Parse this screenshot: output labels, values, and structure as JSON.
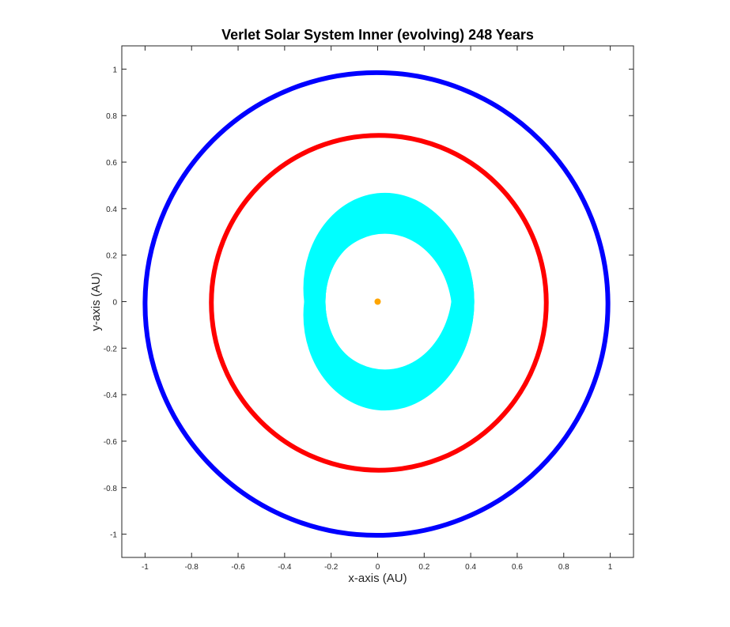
{
  "chart_data": {
    "type": "scatter",
    "title": "Verlet Solar System Inner (evolving) 248 Years",
    "xlabel": "x-axis (AU)",
    "ylabel": "y-axis (AU)",
    "xlim": [
      -1.1,
      1.1
    ],
    "ylim": [
      -1.1,
      1.1
    ],
    "xticks": [
      -1,
      -0.8,
      -0.6,
      -0.4,
      -0.2,
      0,
      0.2,
      0.4,
      0.6,
      0.8,
      1
    ],
    "yticks": [
      -1,
      -0.8,
      -0.6,
      -0.4,
      -0.2,
      0,
      0.2,
      0.4,
      0.6,
      0.8,
      1
    ],
    "xtick_labels": [
      "-1",
      "-0.8",
      "-0.6",
      "-0.4",
      "-0.2",
      "0",
      "0.2",
      "0.4",
      "0.6",
      "0.8",
      "1"
    ],
    "ytick_labels": [
      "-1",
      "-0.8",
      "-0.6",
      "-0.4",
      "-0.2",
      "0",
      "0.2",
      "0.4",
      "0.6",
      "0.8",
      "1"
    ],
    "grid": false,
    "series": [
      {
        "color": "#ff0000",
        "orbit": {
          "cx": 0.005,
          "cy": -0.005,
          "rx": 0.72,
          "ry": 0.72
        }
      },
      {
        "color": "#0000ff",
        "orbit": {
          "cx": -0.005,
          "cy": -0.01,
          "rx": 0.995,
          "ry": 0.995
        }
      },
      {
        "color": "#00ffff",
        "orbit_band": {
          "rx_outer": 0.41,
          "ry_outer": 0.46,
          "inner_offset": 0.15
        }
      },
      {
        "color": "#ffa500",
        "points": [
          [
            0.0,
            0.0
          ]
        ]
      }
    ]
  }
}
